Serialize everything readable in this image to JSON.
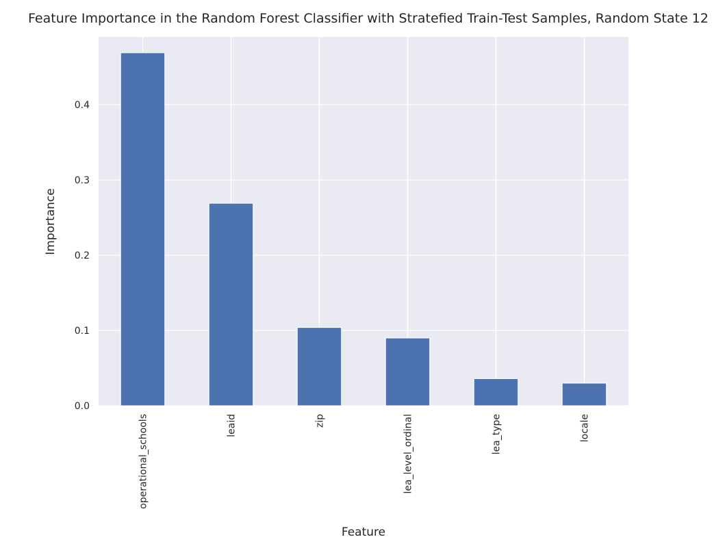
{
  "chart_data": {
    "type": "bar",
    "title": "Feature Importance in the Random Forest Classifier with Stratefied Train-Test Samples, Random State 12",
    "xlabel": "Feature",
    "ylabel": "Importance",
    "categories": [
      "operational_schools",
      "leaid",
      "zip",
      "lea_level_ordinal",
      "lea_type",
      "locale"
    ],
    "values": [
      0.469,
      0.269,
      0.104,
      0.09,
      0.036,
      0.03
    ],
    "ylim": [
      0,
      0.49
    ],
    "yticks": [
      "0.0",
      "0.1",
      "0.2",
      "0.3",
      "0.4"
    ],
    "grid": true,
    "colors": {
      "bar": "#4c72b0",
      "background": "#eaeaf2",
      "grid": "#ffffff"
    }
  }
}
